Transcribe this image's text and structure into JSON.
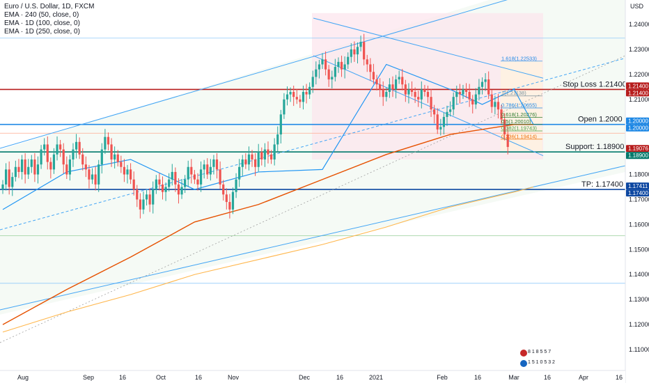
{
  "legend": {
    "symbol": "Euro / U.S. Dollar, 1D, FXCM",
    "ema1": "EMA · 240 (50, close, 0)",
    "ema2": "EMA · 1D (100, close, 0)",
    "ema3": "EMA · 1D (250, close, 0)"
  },
  "currency": "USD",
  "colors": {
    "up": "#26a69a",
    "down": "#ef5350",
    "ema50": "#2196f3",
    "ema100": "#e65100",
    "ema250": "#ffb74d",
    "stop": "#b71c1c",
    "open": "#1e88e5",
    "support": "#00796b",
    "tp": "#0d47a1",
    "channel": "#42a5f5"
  },
  "levels": [
    {
      "name": "stop-loss",
      "label": "Stop Loss 1.21400",
      "value": 1.214,
      "tags": [
        "1.21400",
        "1.21400"
      ]
    },
    {
      "name": "open",
      "label": "Open 1.2000",
      "value": 1.2,
      "tags": [
        "1.20000",
        "1.20000"
      ]
    },
    {
      "name": "support",
      "label": "Support: 1.18900",
      "value": 1.189,
      "tags": [
        "1.19076",
        "1.18900"
      ]
    },
    {
      "name": "tp",
      "label": "TP: 1.17400",
      "value": 1.174,
      "tags": [
        "1.17411",
        "1.17400"
      ]
    }
  ],
  "fib_labels": [
    {
      "label": "1.618(1.22533)",
      "value": 1.2253
    },
    {
      "label": "1(1.21138)",
      "value": 1.2114
    },
    {
      "label": "0.786(1.20655)",
      "value": 1.2066
    },
    {
      "label": "0.618(1.20276)",
      "value": 1.2028
    },
    {
      "label": "0.5(1.20010)",
      "value": 1.2001
    },
    {
      "label": "0.382(1.19743)",
      "value": 1.1974
    },
    {
      "label": "0.236(1.19414)",
      "value": 1.1941
    }
  ],
  "events": {
    "line1": "8 1 8 5 5 7",
    "line2": "1 5 1 0 5 3 2"
  },
  "chart_data": {
    "type": "candlestick",
    "title": "Euro / U.S. Dollar, 1D, FXCM",
    "y_ticks": [
      "1.24000",
      "1.23000",
      "1.22000",
      "1.21000",
      "1.20000",
      "1.19000",
      "1.18000",
      "1.17000",
      "1.16000",
      "1.15000",
      "1.14000",
      "1.13000",
      "1.12000",
      "1.11000"
    ],
    "x_ticks": [
      "Aug",
      "Sep",
      "16",
      "Oct",
      "16",
      "Nov",
      "Dec",
      "16",
      "2021",
      "Feb",
      "16",
      "Mar",
      "16",
      "Apr",
      "16"
    ],
    "ylim": [
      1.1055,
      1.2455
    ],
    "grid": false,
    "closes": [
      1.176,
      1.182,
      1.175,
      1.179,
      1.183,
      1.181,
      1.186,
      1.18,
      1.183,
      1.186,
      1.18,
      1.184,
      1.19,
      1.192,
      1.185,
      1.182,
      1.188,
      1.192,
      1.19,
      1.184,
      1.18,
      1.186,
      1.19,
      1.193,
      1.188,
      1.184,
      1.182,
      1.178,
      1.18,
      1.176,
      1.184,
      1.19,
      1.195,
      1.192,
      1.186,
      1.188,
      1.185,
      1.183,
      1.18,
      1.182,
      1.178,
      1.174,
      1.17,
      1.166,
      1.17,
      1.172,
      1.168,
      1.174,
      1.178,
      1.176,
      1.173,
      1.175,
      1.178,
      1.181,
      1.176,
      1.172,
      1.175,
      1.178,
      1.183,
      1.18,
      1.178,
      1.176,
      1.182,
      1.184,
      1.18,
      1.183,
      1.186,
      1.182,
      1.176,
      1.172,
      1.169,
      1.166,
      1.173,
      1.178,
      1.183,
      1.186,
      1.184,
      1.188,
      1.186,
      1.183,
      1.189,
      1.186,
      1.19,
      1.188,
      1.186,
      1.192,
      1.196,
      1.204,
      1.21,
      1.212,
      1.213,
      1.211,
      1.21,
      1.209,
      1.213,
      1.212,
      1.215,
      1.219,
      1.222,
      1.224,
      1.226,
      1.222,
      1.218,
      1.219,
      1.223,
      1.225,
      1.222,
      1.224,
      1.227,
      1.23,
      1.228,
      1.231,
      1.233,
      1.226,
      1.224,
      1.221,
      1.218,
      1.216,
      1.214,
      1.211,
      1.213,
      1.216,
      1.214,
      1.218,
      1.219,
      1.216,
      1.212,
      1.214,
      1.213,
      1.211,
      1.21,
      1.214,
      1.213,
      1.211,
      1.206,
      1.204,
      1.198,
      1.199,
      1.203,
      1.205,
      1.206,
      1.211,
      1.213,
      1.212,
      1.214,
      1.213,
      1.21,
      1.208,
      1.212,
      1.215,
      1.217,
      1.218,
      1.212,
      1.207,
      1.209,
      1.206,
      1.202,
      1.196,
      1.191
    ],
    "ema_lines": [
      {
        "name": "EMA · 240 (50, close, 0)",
        "x": [
          0,
          20,
          40,
          60,
          80,
          100,
          120,
          140,
          150,
          160,
          166
        ],
        "y": [
          1.166,
          1.181,
          1.186,
          1.174,
          1.181,
          1.182,
          1.224,
          1.214,
          1.208,
          1.214,
          1.2
        ]
      },
      {
        "name": "EMA · 1D (100, close, 0)",
        "x": [
          0,
          20,
          40,
          60,
          80,
          100,
          120,
          140,
          160,
          166
        ],
        "y": [
          1.12,
          1.134,
          1.147,
          1.161,
          1.168,
          1.178,
          1.188,
          1.196,
          1.2,
          1.2
        ]
      },
      {
        "name": "EMA · 1D (250, close, 0)",
        "x": [
          0,
          20,
          40,
          60,
          80,
          100,
          120,
          140,
          160,
          166
        ],
        "y": [
          1.117,
          1.125,
          1.132,
          1.14,
          1.146,
          1.152,
          1.159,
          1.167,
          1.173,
          1.175
        ]
      }
    ]
  }
}
